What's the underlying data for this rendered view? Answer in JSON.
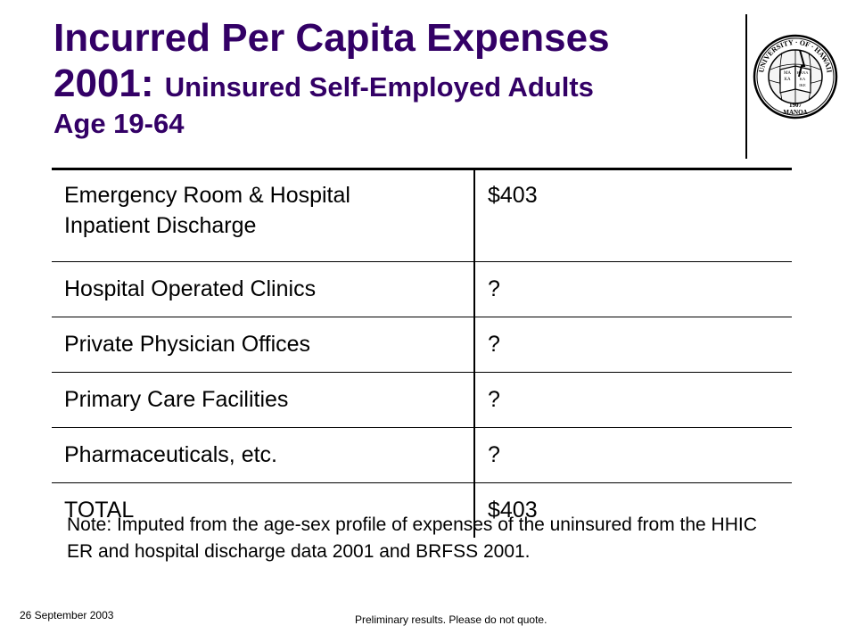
{
  "slide": {
    "title_line1": "Incurred Per Capita Expenses",
    "title_year": "2001:",
    "title_sub": "Uninsured Self-Employed Adults",
    "title_line3": "Age 19-64"
  },
  "seal": {
    "top_text": "UNIVERSITY · OF · HAWAII",
    "year": "1907",
    "bottom_text": "MANOA",
    "book_text": [
      "MA",
      "KA",
      "HANA",
      "KA",
      "IKE"
    ]
  },
  "table": {
    "rows": [
      {
        "label_lines": [
          "Emergency Room & Hospital",
          "Inpatient Discharge"
        ],
        "value": "$403"
      },
      {
        "label": "Hospital Operated Clinics",
        "value": "?"
      },
      {
        "label": "Private Physician Offices",
        "value": "?"
      },
      {
        "label": "Primary Care Facilities",
        "value": "?"
      },
      {
        "label": "Pharmaceuticals, etc.",
        "value": "?"
      },
      {
        "label": "TOTAL",
        "value": "$403"
      }
    ]
  },
  "note": "Note: Imputed from the age-sex profile of expenses of the uninsured from the HHIC ER and hospital discharge data 2001 and BRFSS 2001.",
  "footer": {
    "date": "26 September 2003",
    "disclaimer": "Preliminary results. Please do not quote."
  }
}
